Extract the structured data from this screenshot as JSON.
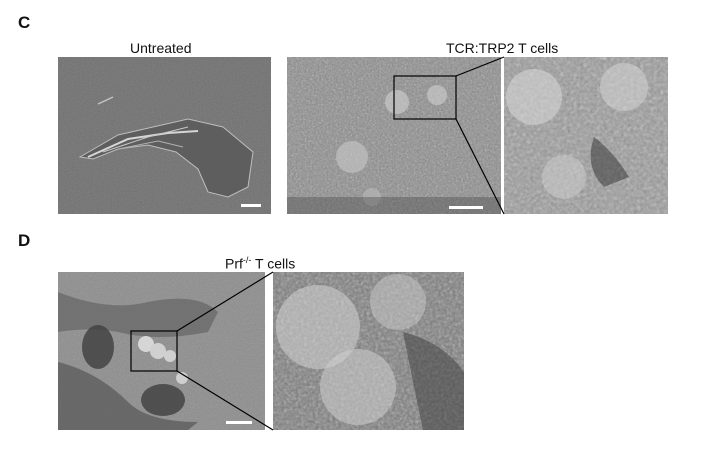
{
  "panels": {
    "c": {
      "letter": "C",
      "untreated_caption": "Untreated",
      "treated_caption": "TCR:TRP2 T cells"
    },
    "d": {
      "letter": "D",
      "caption_base": "Prf",
      "caption_super": "-/-",
      "caption_rest": " T cells"
    }
  },
  "images": [
    {
      "name": "untreated-micrograph",
      "description_icon": "sem-micrograph-icon"
    },
    {
      "name": "tcr-trp2-micrograph",
      "description_icon": "sem-micrograph-icon"
    },
    {
      "name": "tcr-trp2-zoom-micrograph",
      "description_icon": "sem-micrograph-icon"
    },
    {
      "name": "prf-micrograph",
      "description_icon": "sem-micrograph-icon"
    },
    {
      "name": "prf-zoom-micrograph",
      "description_icon": "sem-micrograph-icon"
    }
  ],
  "colors": {
    "sem_gray": "#7a7a7a",
    "sem_light": "#d8d8d8",
    "sem_dark": "#3a3a3a"
  }
}
